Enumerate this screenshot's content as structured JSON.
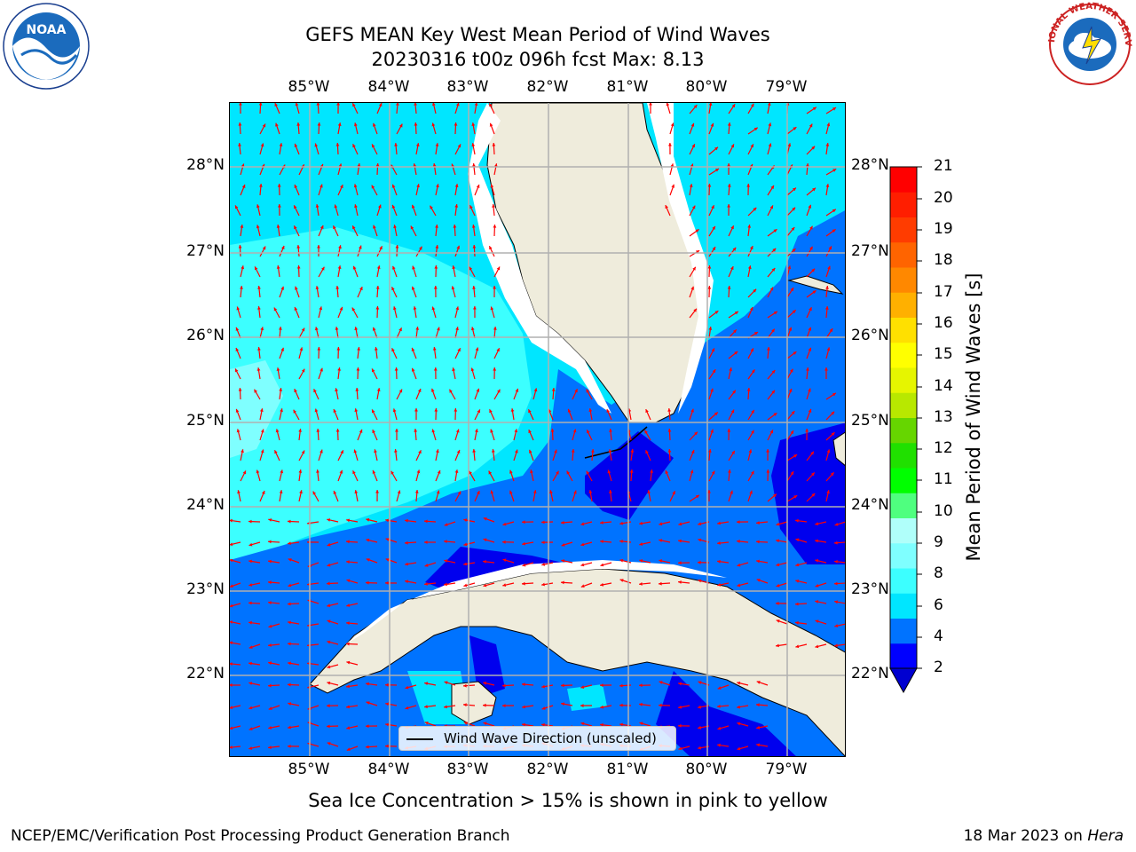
{
  "title": {
    "line1": "GEFS MEAN Key West Mean Period of Wind Waves",
    "line2": "20230316 t00z 096h fcst   Max: 8.13"
  },
  "map": {
    "lon_labels": [
      "85°W",
      "84°W",
      "83°W",
      "82°W",
      "81°W",
      "80°W",
      "79°W"
    ],
    "lat_labels": [
      "28°N",
      "27°N",
      "26°N",
      "25°N",
      "24°N",
      "23°N",
      "22°N"
    ],
    "land_color": "#efecdc",
    "arrow_color": "#ff0000",
    "grid_color": "#b0b0b0"
  },
  "colorbar": {
    "label": "Mean Period of Wind Waves [s]",
    "ticks": [
      "21",
      "20",
      "19",
      "18",
      "17",
      "16",
      "15",
      "14",
      "13",
      "12",
      "11",
      "10",
      "9",
      "8",
      "6",
      "4",
      "2"
    ],
    "colors_bottom_to_top": [
      "#0000ff",
      "#0073ff",
      "#00e6ff",
      "#3cffff",
      "#7fffff",
      "#b0fffa",
      "#4fff7f",
      "#00ff00",
      "#20e000",
      "#66d600",
      "#b8e800",
      "#e6f500",
      "#ffff00",
      "#ffe000",
      "#ffb000",
      "#ff8800",
      "#ff6400",
      "#ff3c00",
      "#ff1e00",
      "#ff0000"
    ],
    "under_color": "#0000d0"
  },
  "legend": {
    "label": "Wind Wave Direction (unscaled)"
  },
  "sea_ice_note": "Sea Ice Concentration > 15% is shown in pink to yellow",
  "footer": {
    "left": "NCEP/EMC/Verification Post Processing Product Generation Branch",
    "right_date": "18 Mar 2023 on ",
    "right_host": "Hera"
  },
  "logos": {
    "noaa_text": "NOAA",
    "nws_text": "NATIONAL WEATHER SERVICE"
  }
}
